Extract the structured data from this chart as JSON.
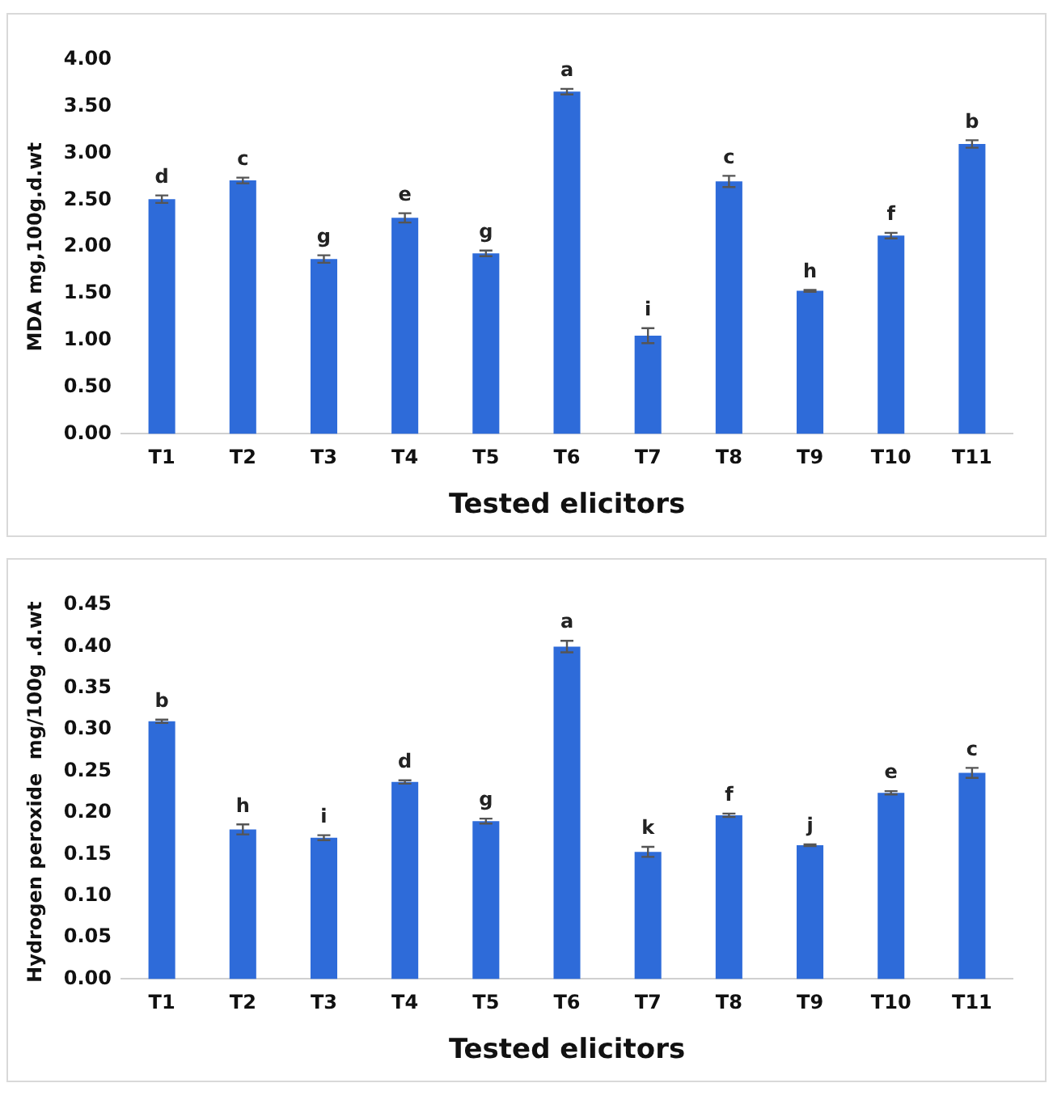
{
  "chart_data": [
    {
      "type": "bar",
      "xlabel": "Tested elicitors",
      "ylabel": "MDA mg,100g.d.wt",
      "categories": [
        "T1",
        "T2",
        "T3",
        "T4",
        "T5",
        "T6",
        "T7",
        "T8",
        "T9",
        "T10",
        "T11"
      ],
      "values": [
        2.51,
        2.71,
        1.87,
        2.31,
        1.93,
        3.66,
        1.05,
        2.7,
        1.53,
        2.12,
        3.1
      ],
      "errors": [
        0.04,
        0.03,
        0.04,
        0.05,
        0.03,
        0.03,
        0.08,
        0.06,
        0.01,
        0.03,
        0.04
      ],
      "color": "#2e6bd9",
      "ylim": [
        0,
        4
      ],
      "yticks": [
        {
          "value": 0,
          "label": "0.00"
        },
        {
          "value": 0.5,
          "label": "0.50"
        },
        {
          "value": 1,
          "label": "1.00"
        },
        {
          "value": 1.5,
          "label": "1.50"
        },
        {
          "value": 2,
          "label": "2.00"
        },
        {
          "value": 2.5,
          "label": "2.50"
        },
        {
          "value": 3,
          "label": "3.00"
        },
        {
          "value": 3.5,
          "label": "3.50"
        },
        {
          "value": 4,
          "label": "4.00"
        }
      ],
      "grid": false,
      "legend": false,
      "annotations": [
        {
          "text": "d",
          "x": "T1",
          "y": 2.55
        },
        {
          "text": "c",
          "x": "T2",
          "y": 2.74
        },
        {
          "text": "g",
          "x": "T3",
          "y": 1.91
        },
        {
          "text": "e",
          "x": "T4",
          "y": 2.36
        },
        {
          "text": "g",
          "x": "T5",
          "y": 1.96
        },
        {
          "text": "a",
          "x": "T6",
          "y": 3.69
        },
        {
          "text": "i",
          "x": "T7",
          "y": 1.13
        },
        {
          "text": "c",
          "x": "T8",
          "y": 2.76
        },
        {
          "text": "h",
          "x": "T9",
          "y": 1.54
        },
        {
          "text": "f",
          "x": "T10",
          "y": 2.15
        },
        {
          "text": "b",
          "x": "T11",
          "y": 3.14
        }
      ]
    },
    {
      "type": "bar",
      "xlabel": "Tested elicitors",
      "ylabel": "Hydrogen peroxide  mg/100g .d.wt",
      "categories": [
        "T1",
        "T2",
        "T3",
        "T4",
        "T5",
        "T6",
        "T7",
        "T8",
        "T9",
        "T10",
        "T11"
      ],
      "values": [
        0.31,
        0.18,
        0.17,
        0.237,
        0.19,
        0.4,
        0.153,
        0.197,
        0.161,
        0.224,
        0.248
      ],
      "errors": [
        0.002,
        0.006,
        0.003,
        0.002,
        0.003,
        0.007,
        0.006,
        0.002,
        0.001,
        0.002,
        0.006
      ],
      "color": "#2e6bd9",
      "ylim": [
        0,
        0.45
      ],
      "yticks": [
        {
          "value": 0,
          "label": "0.00"
        },
        {
          "value": 0.05,
          "label": "0.05"
        },
        {
          "value": 0.1,
          "label": "0.10"
        },
        {
          "value": 0.15,
          "label": "0.15"
        },
        {
          "value": 0.2,
          "label": "0.20"
        },
        {
          "value": 0.25,
          "label": "0.25"
        },
        {
          "value": 0.3,
          "label": "0.30"
        },
        {
          "value": 0.35,
          "label": "0.35"
        },
        {
          "value": 0.4,
          "label": "0.40"
        },
        {
          "value": 0.45,
          "label": "0.45"
        }
      ],
      "grid": false,
      "legend": false,
      "annotations": [
        {
          "text": "b",
          "x": "T1",
          "y": 0.312
        },
        {
          "text": "h",
          "x": "T2",
          "y": 0.186
        },
        {
          "text": "i",
          "x": "T3",
          "y": 0.173
        },
        {
          "text": "d",
          "x": "T4",
          "y": 0.239
        },
        {
          "text": "g",
          "x": "T5",
          "y": 0.193
        },
        {
          "text": "a",
          "x": "T6",
          "y": 0.407
        },
        {
          "text": "k",
          "x": "T7",
          "y": 0.159
        },
        {
          "text": "f",
          "x": "T8",
          "y": 0.199
        },
        {
          "text": "j",
          "x": "T9",
          "y": 0.162
        },
        {
          "text": "e",
          "x": "T10",
          "y": 0.226
        },
        {
          "text": "c",
          "x": "T11",
          "y": 0.254
        }
      ]
    }
  ]
}
